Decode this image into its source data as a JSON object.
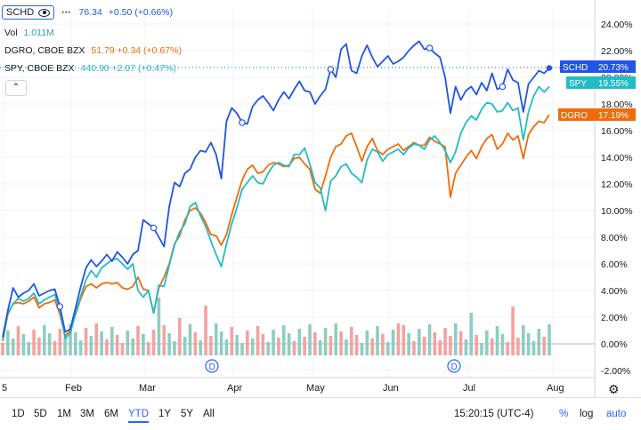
{
  "legend": {
    "symbol": "SCHD",
    "price": "76.34",
    "change": "+0.50 (+0.66%)",
    "vol_label": "Vol",
    "vol_value": "1.011M",
    "dgro_name": "DGRO, CBOE BZX",
    "dgro_values": "51.79 +0.34 (+0.67%)",
    "spy_name": "SPY, CBOE BZX",
    "spy_values": "440.90 +2.07 (+0.47%)"
  },
  "bottom_bar": {
    "ranges": [
      "1D",
      "5D",
      "1M",
      "3M",
      "6M",
      "YTD",
      "1Y",
      "5Y",
      "All"
    ],
    "active_range": "YTD",
    "time": "15:20:15 (UTC-4)",
    "percent_label": "%",
    "log_label": "log",
    "auto_label": "auto"
  },
  "colors": {
    "SCHD": "#2155e3",
    "SPY": "#22bcc4",
    "DGRO": "#ef6c0a",
    "vol_up": "#8fcdc1",
    "vol_down": "#f2a3a0"
  },
  "chart_data": {
    "type": "line",
    "x_tick_labels": [
      "5",
      "Feb",
      "Mar",
      "Apr",
      "May",
      "Jun",
      "Jul",
      "Aug"
    ],
    "y_tick_labels": [
      "24.00%",
      "22.00%",
      "20.00%",
      "18.00%",
      "16.00%",
      "14.00%",
      "12.00%",
      "10.00%",
      "8.00%",
      "6.00%",
      "4.00%",
      "2.00%",
      "0.00%",
      "-2.00%"
    ],
    "ylim": [
      -2.5,
      25
    ],
    "series": [
      {
        "name": "SCHD",
        "last_label": "20.73%",
        "values": [
          0.5,
          2.5,
          4.2,
          3.5,
          3.8,
          4.0,
          4.5,
          3.6,
          3.8,
          4.0,
          4.1,
          2.8,
          0.9,
          1.1,
          2.7,
          4.3,
          5.7,
          6.3,
          5.8,
          6.2,
          6.7,
          6.2,
          6.9,
          6.5,
          6.0,
          6.7,
          7.0,
          9.3,
          9.0,
          8.7,
          8.0,
          7.3,
          10.3,
          12.1,
          11.8,
          12.8,
          13.1,
          14.0,
          14.5,
          14.4,
          15.1,
          14.2,
          12.4,
          16.7,
          17.7,
          17.3,
          16.6,
          16.5,
          17.8,
          18.3,
          18.6,
          18.1,
          17.5,
          18.3,
          18.9,
          18.4,
          19.1,
          19.7,
          19.0,
          18.9,
          18.0,
          18.6,
          19.1,
          20.6,
          20.0,
          22.1,
          22.5,
          20.5,
          20.3,
          21.6,
          22.4,
          21.5,
          20.8,
          21.2,
          21.6,
          21.0,
          21.2,
          21.5,
          22.0,
          22.4,
          22.7,
          22.1,
          22.2,
          21.8,
          21.5,
          20.0,
          17.3,
          19.3,
          18.3,
          19.0,
          19.3,
          18.7,
          19.6,
          19.0,
          20.3,
          19.1,
          19.3,
          20.6,
          19.8,
          19.6,
          17.4,
          19.5,
          20.0,
          20.5,
          20.3,
          20.7
        ]
      },
      {
        "name": "SPY",
        "last_label": "19.55%",
        "values": [
          0.3,
          2.3,
          3.0,
          3.4,
          3.2,
          3.4,
          3.8,
          3.0,
          3.3,
          3.5,
          3.7,
          2.5,
          0.4,
          0.8,
          2.3,
          3.6,
          4.8,
          5.5,
          5.0,
          5.7,
          6.0,
          6.3,
          6.4,
          6.0,
          5.6,
          6.0,
          4.0,
          3.5,
          4.0,
          2.3,
          4.4,
          4.3,
          5.9,
          7.4,
          8.4,
          9.0,
          10.3,
          10.6,
          9.6,
          8.8,
          7.7,
          6.7,
          5.8,
          7.5,
          9.0,
          10.2,
          11.6,
          12.1,
          12.6,
          12.1,
          12.0,
          12.8,
          13.4,
          13.6,
          13.4,
          13.3,
          14.2,
          14.2,
          14.7,
          13.5,
          12.1,
          11.7,
          10.0,
          12.2,
          12.6,
          13.3,
          13.5,
          12.8,
          12.5,
          12.1,
          13.8,
          14.6,
          14.4,
          13.7,
          14.2,
          14.4,
          14.6,
          14.2,
          14.7,
          15.0,
          14.9,
          14.6,
          15.3,
          15.6,
          15.1,
          14.5,
          13.6,
          14.4,
          15.8,
          16.6,
          17.1,
          16.8,
          17.6,
          18.1,
          18.0,
          17.4,
          17.5,
          18.1,
          17.5,
          17.7,
          15.3,
          17.4,
          18.6,
          19.3,
          18.9,
          19.3
        ]
      },
      {
        "name": "DGRO",
        "last_label": "17.19%",
        "values": [
          0.2,
          2.2,
          3.0,
          3.1,
          3.0,
          3.2,
          3.5,
          2.7,
          3.0,
          3.1,
          3.3,
          2.2,
          0.6,
          1.0,
          2.2,
          3.4,
          4.3,
          4.5,
          4.2,
          4.5,
          4.6,
          4.5,
          4.6,
          4.2,
          4.1,
          4.3,
          5.0,
          4.1,
          4.0,
          2.3,
          4.2,
          5.0,
          6.0,
          7.5,
          8.1,
          9.3,
          10.0,
          10.2,
          9.8,
          9.1,
          8.2,
          8.1,
          7.4,
          8.2,
          9.7,
          11.0,
          12.3,
          13.1,
          13.4,
          12.8,
          12.9,
          13.4,
          13.6,
          13.5,
          13.3,
          13.4,
          13.9,
          14.0,
          13.5,
          13.1,
          11.6,
          11.3,
          12.6,
          14.0,
          14.8,
          15.0,
          15.6,
          15.8,
          14.8,
          13.7,
          14.8,
          15.4,
          14.5,
          14.2,
          14.6,
          14.8,
          15.0,
          14.5,
          14.8,
          15.1,
          14.9,
          14.9,
          15.5,
          15.2,
          15.0,
          14.8,
          11.0,
          12.8,
          13.4,
          14.0,
          14.5,
          13.9,
          14.8,
          15.4,
          15.7,
          14.6,
          15.0,
          15.8,
          15.3,
          15.6,
          13.9,
          15.7,
          16.3,
          16.7,
          16.6,
          17.2
        ]
      }
    ],
    "volume_up": [
      0,
      1,
      1,
      0,
      1,
      1,
      0,
      0,
      1,
      1,
      0,
      0,
      1,
      1,
      1,
      1,
      0,
      1,
      0,
      1,
      0,
      1,
      0,
      0,
      1,
      1,
      0,
      1,
      0,
      0,
      1,
      0,
      1,
      1,
      0,
      1,
      1,
      0,
      1,
      0,
      0,
      1,
      1,
      1,
      0,
      1,
      1,
      0,
      1,
      0,
      0,
      1,
      1,
      0,
      1,
      1,
      0,
      1,
      0,
      1,
      0,
      1,
      1,
      0,
      1,
      0,
      1,
      0,
      0,
      1,
      1,
      0,
      1,
      0,
      1,
      1,
      0,
      0,
      1,
      0,
      1,
      0,
      1,
      0,
      0,
      0,
      0,
      1,
      0,
      1,
      1,
      0,
      1,
      1,
      0,
      1,
      1,
      0,
      0,
      0,
      1,
      1,
      1,
      1,
      0,
      1
    ],
    "dividend_markers": [
      "SCHD",
      "SCHD"
    ],
    "grid": true,
    "price_line_at": 20.73
  }
}
